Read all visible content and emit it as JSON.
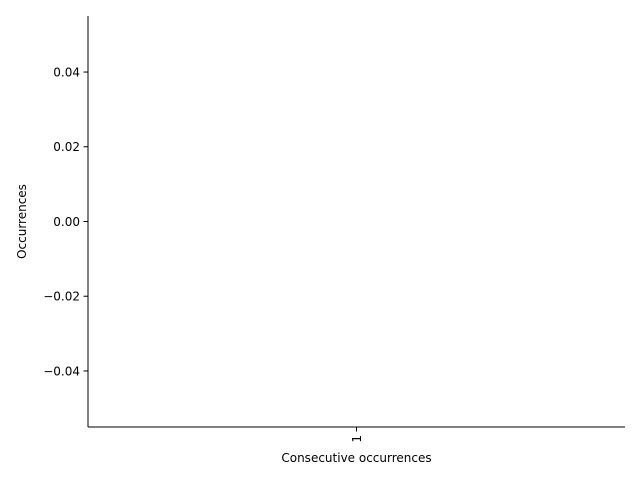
{
  "chart_data": {
    "type": "bar",
    "title": "",
    "xlabel": "Consecutive occurrences",
    "ylabel": "Occurrences",
    "categories": [
      "1"
    ],
    "values": [
      0
    ],
    "ylim": [
      -0.055,
      0.055
    ],
    "yticks": [
      -0.04,
      -0.02,
      0.0,
      0.02,
      0.04
    ],
    "ytick_labels": [
      "−0.04",
      "−0.02",
      "0.00",
      "0.02",
      "0.04"
    ],
    "xtick_rotation": "vertical",
    "grid": false,
    "legend": "none",
    "spines": "left-bottom",
    "bar_color": "#1f77b4",
    "axis_color": "#000000"
  }
}
